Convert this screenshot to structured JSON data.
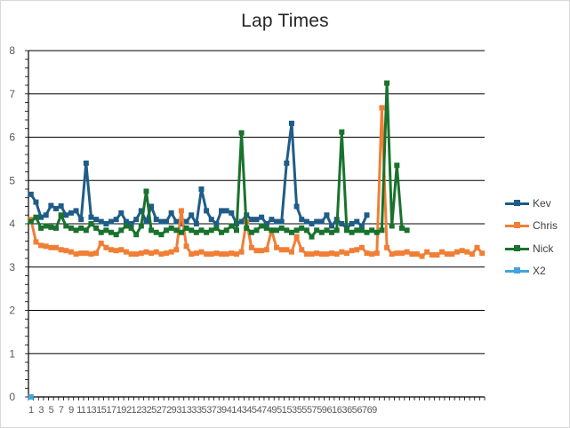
{
  "chart_data": {
    "type": "line",
    "title": "Lap Times",
    "ylim": [
      0,
      8
    ],
    "yticks": [
      0,
      1,
      2,
      3,
      4,
      5,
      6,
      7,
      8
    ],
    "x_categories_count": 91,
    "x_tick_labels": [
      1,
      3,
      5,
      7,
      9,
      11,
      13,
      15,
      17,
      19,
      21,
      23,
      25,
      27,
      29,
      31,
      33,
      35,
      37,
      39,
      41,
      43,
      45,
      47,
      49,
      51,
      53,
      55,
      57,
      59,
      61,
      63,
      65,
      67,
      69
    ],
    "grid": true,
    "legend_position": "right",
    "series": [
      {
        "name": "Kev",
        "color": "#1f5c87",
        "values": [
          4.68,
          4.5,
          4.15,
          4.2,
          4.42,
          4.35,
          4.41,
          4.2,
          4.25,
          4.3,
          4.1,
          5.4,
          4.15,
          4.1,
          4.05,
          4.0,
          4.05,
          4.1,
          4.25,
          4.05,
          4.0,
          4.1,
          4.3,
          4.05,
          4.4,
          4.1,
          4.05,
          4.05,
          4.25,
          4.05,
          4.0,
          4.05,
          4.2,
          4.0,
          4.8,
          4.3,
          4.1,
          4.0,
          4.3,
          4.3,
          4.25,
          4.0,
          4.05,
          4.2,
          4.1,
          4.1,
          4.15,
          4.0,
          4.1,
          4.05,
          4.05,
          5.4,
          6.32,
          4.4,
          4.1,
          4.05,
          4.0,
          4.05,
          4.05,
          4.2,
          3.95,
          4.1,
          4.0,
          3.9,
          4.0,
          4.05,
          3.95,
          4.2
        ]
      },
      {
        "name": "Chris",
        "color": "#f07f36",
        "values": [
          4.1,
          3.58,
          3.5,
          3.48,
          3.45,
          3.45,
          3.4,
          3.38,
          3.35,
          3.3,
          3.32,
          3.32,
          3.3,
          3.32,
          3.55,
          3.45,
          3.4,
          3.38,
          3.4,
          3.35,
          3.3,
          3.3,
          3.32,
          3.35,
          3.32,
          3.35,
          3.3,
          3.32,
          3.35,
          3.4,
          4.3,
          3.48,
          3.3,
          3.32,
          3.35,
          3.3,
          3.3,
          3.32,
          3.3,
          3.3,
          3.32,
          3.3,
          3.35,
          4.05,
          3.45,
          3.38,
          3.38,
          3.4,
          3.85,
          3.45,
          3.4,
          3.4,
          3.35,
          3.7,
          3.4,
          3.3,
          3.3,
          3.32,
          3.3,
          3.3,
          3.32,
          3.3,
          3.35,
          3.32,
          3.38,
          3.4,
          3.45,
          3.32,
          3.3,
          3.32,
          6.68,
          3.45,
          3.3,
          3.32,
          3.32,
          3.35,
          3.3,
          3.3,
          3.25,
          3.35,
          3.28,
          3.28,
          3.35,
          3.3,
          3.3,
          3.35,
          3.38,
          3.35,
          3.3,
          3.45,
          3.32
        ]
      },
      {
        "name": "Nick",
        "color": "#19722d",
        "values": [
          4.05,
          4.15,
          3.9,
          3.95,
          3.92,
          3.9,
          4.2,
          3.95,
          3.9,
          3.85,
          3.9,
          3.85,
          4.0,
          3.9,
          3.8,
          3.85,
          3.8,
          3.75,
          3.85,
          3.95,
          3.9,
          3.75,
          3.95,
          4.75,
          3.85,
          3.8,
          3.75,
          3.85,
          3.9,
          3.85,
          3.8,
          3.9,
          3.85,
          3.8,
          3.85,
          3.8,
          3.85,
          3.9,
          3.8,
          3.85,
          3.95,
          3.85,
          6.1,
          3.9,
          3.8,
          3.85,
          3.95,
          3.9,
          3.85,
          3.85,
          3.9,
          3.85,
          3.8,
          3.85,
          3.9,
          3.85,
          3.7,
          3.85,
          3.8,
          3.85,
          3.8,
          3.85,
          6.12,
          3.85,
          3.8,
          3.85,
          3.85,
          3.8,
          3.85,
          3.8,
          3.85,
          7.25,
          3.95,
          5.35,
          3.9,
          3.85
        ]
      },
      {
        "name": "X2",
        "color": "#41a4dc",
        "values": [
          0
        ]
      }
    ]
  }
}
